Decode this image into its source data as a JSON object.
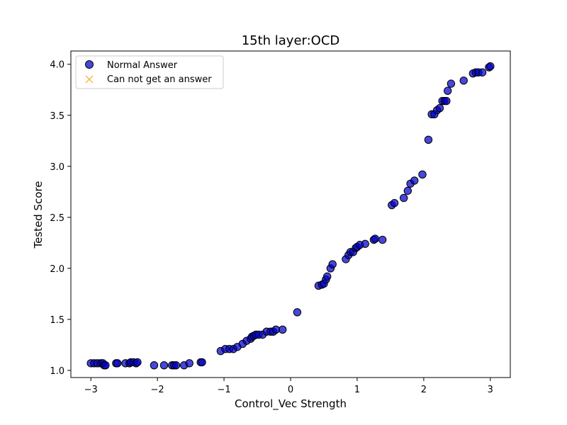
{
  "chart_data": {
    "type": "scatter",
    "title": "15th layer:OCD",
    "xlabel": "Control_Vec Strength",
    "ylabel": "Tested Score",
    "xlim": [
      -3.3,
      3.3
    ],
    "ylim": [
      0.93,
      4.13
    ],
    "xticks": [
      -3,
      -2,
      -1,
      0,
      1,
      2,
      3
    ],
    "xtick_labels": [
      "−3",
      "−2",
      "−1",
      "0",
      "1",
      "2",
      "3"
    ],
    "yticks": [
      1.0,
      1.5,
      2.0,
      2.5,
      3.0,
      3.5,
      4.0
    ],
    "ytick_labels": [
      "1.0",
      "1.5",
      "2.0",
      "2.5",
      "3.0",
      "3.5",
      "4.0"
    ],
    "grid": false,
    "legend_position": "top-left",
    "series": [
      {
        "name": "Normal Answer",
        "marker": "circle",
        "color": "#0000cc",
        "edge_color": "#000000",
        "x": [
          -3.0,
          -2.95,
          -2.9,
          -2.85,
          -2.82,
          -2.8,
          -2.78,
          -2.62,
          -2.6,
          -2.48,
          -2.42,
          -2.4,
          -2.36,
          -2.32,
          -2.3,
          -2.05,
          -1.9,
          -1.78,
          -1.75,
          -1.72,
          -1.6,
          -1.52,
          -1.35,
          -1.33,
          -1.05,
          -0.98,
          -0.92,
          -0.86,
          -0.8,
          -0.72,
          -0.66,
          -0.6,
          -0.58,
          -0.55,
          -0.52,
          -0.48,
          -0.42,
          -0.36,
          -0.3,
          -0.26,
          -0.22,
          -0.12,
          0.1,
          0.42,
          0.47,
          0.5,
          0.53,
          0.55,
          0.6,
          0.63,
          0.83,
          0.87,
          0.9,
          0.94,
          0.98,
          1.0,
          1.04,
          1.12,
          1.25,
          1.27,
          1.38,
          1.52,
          1.56,
          1.7,
          1.76,
          1.8,
          1.86,
          1.98,
          2.07,
          2.12,
          2.16,
          2.2,
          2.24,
          2.28,
          2.31,
          2.34,
          2.36,
          2.41,
          2.6,
          2.74,
          2.78,
          2.82,
          2.88,
          2.98,
          3.0
        ],
        "y": [
          1.07,
          1.07,
          1.07,
          1.07,
          1.07,
          1.05,
          1.05,
          1.07,
          1.07,
          1.07,
          1.07,
          1.08,
          1.08,
          1.07,
          1.08,
          1.05,
          1.05,
          1.05,
          1.05,
          1.05,
          1.05,
          1.07,
          1.08,
          1.08,
          1.19,
          1.21,
          1.21,
          1.21,
          1.23,
          1.26,
          1.29,
          1.31,
          1.33,
          1.34,
          1.35,
          1.35,
          1.35,
          1.38,
          1.38,
          1.38,
          1.4,
          1.4,
          1.57,
          1.83,
          1.84,
          1.85,
          1.89,
          1.92,
          2.0,
          2.04,
          2.09,
          2.13,
          2.16,
          2.16,
          2.2,
          2.21,
          2.23,
          2.24,
          2.28,
          2.29,
          2.28,
          2.62,
          2.64,
          2.69,
          2.76,
          2.83,
          2.86,
          2.92,
          3.26,
          3.51,
          3.51,
          3.55,
          3.57,
          3.64,
          3.64,
          3.64,
          3.74,
          3.81,
          3.84,
          3.91,
          3.92,
          3.92,
          3.92,
          3.97,
          3.98
        ]
      },
      {
        "name": "Can not get an answer",
        "marker": "x",
        "color": "#f5a623",
        "x": [],
        "y": []
      }
    ]
  }
}
